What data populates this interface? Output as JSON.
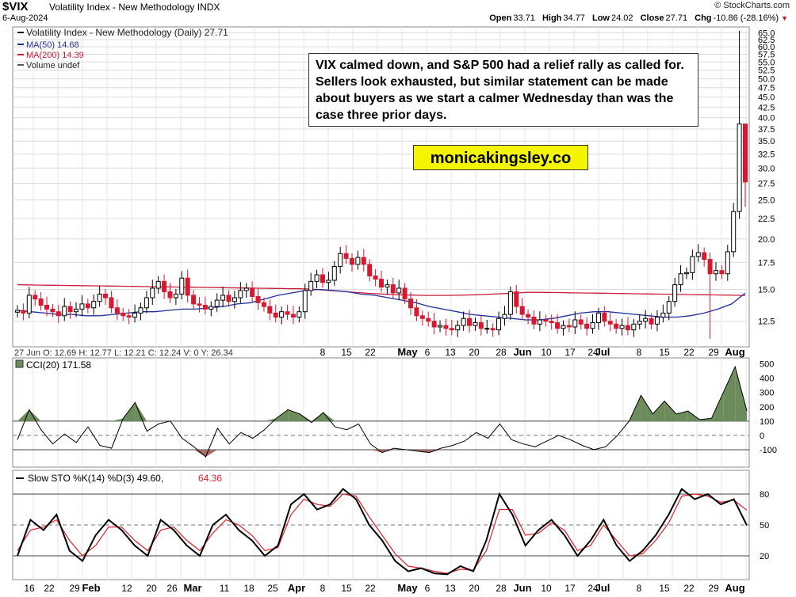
{
  "header": {
    "symbol": "$VIX",
    "description": "Volatility Index - New Methodology  INDX",
    "date": "6-Aug-2024",
    "brand": "© StockCharts.com",
    "open_label": "Open",
    "open": "33.71",
    "high_label": "High",
    "high": "34.77",
    "low_label": "Low",
    "low": "24.02",
    "close_label": "Close",
    "close": "27.71",
    "chg_label": "Chg",
    "chg": "-10.86 (-28.16%)"
  },
  "annotation": {
    "text": "VIX calmed down, and S&P 500 had a relief rally as called for. Sellers look exhausted, but similar statement can be made about buyers as we start a calmer Wednesday than was the case three prior days.",
    "site": "monicakingsley.co"
  },
  "colors": {
    "up": "#000000",
    "down": "#d81830",
    "ma50": "#1f2f9a",
    "ma200": "#c81e3c",
    "cci_pos": "#6c8c5c",
    "cci_neg": "#a76e66",
    "stoch_k": "#000000",
    "stoch_d": "#e0202a",
    "note_bg": "#ffffff",
    "site_bg": "#f4f500"
  },
  "chart_data": [
    {
      "type": "candlestick",
      "legend": [
        "Volatility Index - New Methodology (Daily) 27.71",
        "MA(50) 14.68",
        "MA(200) 14.39",
        "Volume undef"
      ],
      "y_ticks": [
        12.5,
        15.0,
        17.5,
        20.0,
        22.5,
        25.0,
        27.5,
        30.0,
        32.5,
        35.0,
        37.5,
        40.0,
        42.5,
        45.0,
        47.5,
        50.0,
        52.5,
        55.0,
        57.5,
        60.0,
        62.5,
        65.0
      ],
      "scale": "log",
      "ylim": [
        11.0,
        66.0
      ],
      "x_ticks": [
        "8",
        "15",
        "22",
        "May",
        "6",
        "13",
        "20",
        "28",
        "Jun",
        "10",
        "17",
        "24",
        "Jul",
        "8",
        "15",
        "22",
        "29",
        "Aug"
      ],
      "x_tick_months": [
        "May",
        "Jun",
        "Jul",
        "Aug"
      ],
      "hover": "27 Jun O: 12.69  H: 12.77  L: 12.21  C: 12.24  V: 0  Y: 26.34",
      "series_close": [
        13.3,
        13.1,
        14.5,
        14.2,
        13.7,
        13.4,
        13.2,
        12.9,
        13.6,
        13.2,
        13.4,
        13.8,
        13.5,
        14.0,
        14.6,
        14.3,
        13.5,
        13.1,
        12.9,
        12.8,
        13.1,
        13.5,
        14.3,
        15.1,
        15.7,
        14.8,
        14.3,
        14.6,
        16.0,
        14.5,
        13.8,
        13.7,
        13.4,
        13.6,
        14.1,
        14.5,
        14.0,
        14.3,
        14.9,
        15.1,
        14.4,
        13.9,
        13.6,
        13.1,
        12.8,
        13.2,
        13.0,
        12.8,
        13.2,
        14.9,
        15.7,
        16.3,
        15.6,
        15.8,
        17.1,
        18.4,
        17.9,
        17.3,
        18.0,
        17.3,
        16.2,
        15.9,
        15.2,
        15.4,
        14.7,
        15.1,
        14.2,
        13.5,
        12.9,
        12.7,
        12.5,
        12.1,
        12.2,
        12.0,
        11.9,
        12.2,
        12.7,
        12.2,
        12.4,
        12.0,
        12.0,
        11.9,
        12.7,
        13.0,
        14.8,
        13.6,
        13.0,
        12.8,
        12.3,
        12.6,
        12.5,
        12.4,
        12.0,
        12.2,
        12.1,
        12.6,
        12.3,
        12.0,
        12.4,
        13.1,
        12.5,
        12.3,
        12.0,
        12.2,
        11.9,
        12.3,
        12.5,
        12.7,
        12.3,
        12.8,
        13.1,
        14.0,
        15.4,
        16.4,
        16.5,
        18.1,
        18.5,
        17.8,
        16.4,
        16.7,
        16.4,
        18.6,
        23.4,
        38.6,
        27.71
      ],
      "series_ma50": [
        13.3,
        13.2,
        13.1,
        13.0,
        13.0,
        12.9,
        12.9,
        13.0,
        13.1,
        13.2,
        13.2,
        13.3,
        13.4,
        13.4,
        13.5,
        13.6,
        13.8,
        13.9,
        14.2,
        14.5,
        14.7,
        14.9,
        15.0,
        14.9,
        14.8,
        14.6,
        14.5,
        14.3,
        14.1,
        13.9,
        13.6,
        13.4,
        13.2,
        13.0,
        12.9,
        12.8,
        12.7,
        12.6,
        12.6,
        12.7,
        12.9,
        13.1,
        13.2,
        13.2,
        13.1,
        13.0,
        12.9,
        12.8,
        12.8,
        12.9,
        13.1,
        13.4,
        13.8,
        14.68
      ]
    },
    {
      "type": "line",
      "name": "CCI(20) 171.58",
      "y_ticks": [
        -100,
        0,
        100,
        200,
        300,
        400,
        500
      ],
      "ylim": [
        -200,
        520
      ],
      "values": [
        -30,
        180,
        40,
        -60,
        10,
        -50,
        60,
        -70,
        -90,
        120,
        230,
        30,
        80,
        100,
        -20,
        -80,
        -150,
        50,
        -60,
        20,
        -20,
        40,
        120,
        180,
        150,
        90,
        160,
        60,
        40,
        80,
        -60,
        -120,
        -90,
        -100,
        -110,
        -120,
        -90,
        -70,
        -40,
        20,
        -20,
        80,
        -30,
        -60,
        -80,
        -40,
        0,
        -30,
        -70,
        -100,
        -80,
        0,
        100,
        280,
        150,
        240,
        150,
        170,
        110,
        120,
        300,
        480,
        171.58
      ]
    },
    {
      "type": "line",
      "name": "Slow STO %K(14) %D(3) 49.60, 64.36",
      "y_ticks": [
        20,
        50,
        80
      ],
      "ylim": [
        0,
        100
      ],
      "k_values": [
        20,
        55,
        45,
        60,
        25,
        15,
        40,
        55,
        45,
        30,
        20,
        55,
        45,
        30,
        20,
        50,
        60,
        45,
        35,
        20,
        30,
        70,
        80,
        65,
        70,
        85,
        75,
        50,
        35,
        15,
        5,
        8,
        3,
        2,
        10,
        5,
        35,
        80,
        60,
        30,
        45,
        55,
        40,
        20,
        35,
        55,
        30,
        15,
        25,
        40,
        60,
        85,
        75,
        80,
        70,
        75,
        49.6
      ],
      "d_values": [
        25,
        45,
        48,
        55,
        35,
        20,
        30,
        48,
        48,
        35,
        25,
        45,
        48,
        35,
        25,
        42,
        55,
        50,
        40,
        25,
        28,
        60,
        75,
        70,
        68,
        80,
        78,
        58,
        40,
        22,
        10,
        8,
        5,
        3,
        7,
        6,
        25,
        65,
        65,
        40,
        42,
        52,
        45,
        25,
        30,
        50,
        35,
        20,
        22,
        35,
        52,
        78,
        80,
        78,
        72,
        74,
        64.36
      ]
    }
  ],
  "bottom_axis": {
    "labels": [
      "16",
      "22",
      "29",
      "Feb",
      "12",
      "20",
      "26",
      "Mar",
      "11",
      "18",
      "25",
      "Apr",
      "8",
      "15",
      "22",
      "May",
      "6",
      "13",
      "20",
      "28",
      "Jun",
      "10",
      "17",
      "24",
      "Jul",
      "8",
      "15",
      "22",
      "29",
      "Aug"
    ],
    "months": [
      "Feb",
      "Mar",
      "Apr",
      "May",
      "Jun",
      "Jul",
      "Aug"
    ]
  }
}
